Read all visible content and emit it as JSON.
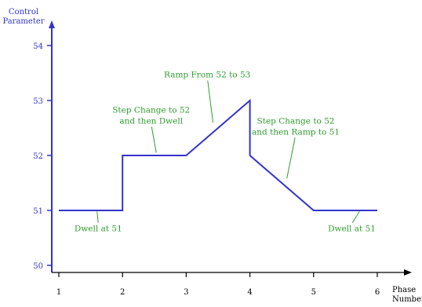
{
  "chart_data": {
    "type": "line",
    "title": "",
    "xlabel": "Phase Number",
    "ylabel": "Control Parameter",
    "xlabel_lines": [
      "Phase",
      "Number"
    ],
    "ylabel_lines": [
      "Control",
      "Parameter"
    ],
    "xlim": [
      0,
      6.5
    ],
    "ylim": [
      49.6,
      54.6
    ],
    "x_ticks": [
      1,
      2,
      3,
      4,
      5,
      6
    ],
    "y_ticks": [
      50,
      51,
      52,
      53,
      54
    ],
    "x_tick_labels": [
      "1",
      "2",
      "3",
      "4",
      "5",
      "6"
    ],
    "y_tick_labels": [
      "50",
      "51",
      "52",
      "53",
      "54"
    ],
    "grid": false,
    "series": [
      {
        "color": "#3333cc",
        "x": [
          1,
          2,
          2,
          3,
          4,
          4,
          5,
          6
        ],
        "y": [
          51,
          51,
          52,
          52,
          53,
          52,
          51,
          51
        ]
      }
    ],
    "annotations": [
      {
        "lines": [
          "Dwell at 51"
        ],
        "text_x": 1.62,
        "text_y": 50.62,
        "point_x": 1.6,
        "point_y": 50.98
      },
      {
        "lines": [
          "Step Change to 52",
          "and then Dwell"
        ],
        "text_x": 2.45,
        "text_y": 52.78,
        "point_x": 2.53,
        "point_y": 52.05
      },
      {
        "lines": [
          "Ramp From 52 to 53"
        ],
        "text_x": 3.33,
        "text_y": 53.42,
        "point_x": 3.42,
        "point_y": 52.6
      },
      {
        "lines": [
          "Step Change to 52",
          "and then Ramp to 51"
        ],
        "text_x": 4.72,
        "text_y": 52.58,
        "point_x": 4.58,
        "point_y": 51.58
      },
      {
        "lines": [
          "Dwell at 51"
        ],
        "text_x": 5.6,
        "text_y": 50.62,
        "point_x": 5.72,
        "point_y": 50.98
      }
    ],
    "colors": {
      "axis": "#3333cc",
      "series": "#3333cc",
      "annotation": "#2e9e2e",
      "label": "#3333cc"
    }
  }
}
